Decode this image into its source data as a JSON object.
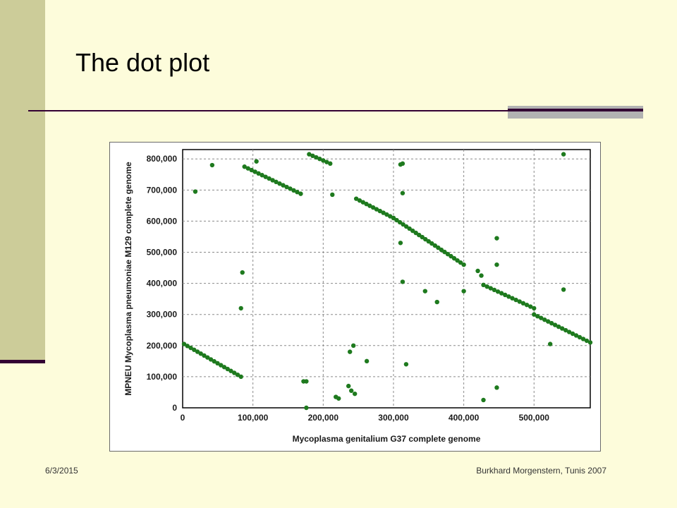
{
  "theme": {
    "background": "#fdfcdb",
    "sidebar": "#cccc99",
    "dark_accent": "#330033",
    "rule_gray": "#b2b2b2",
    "dot_color": "#1e7a1e"
  },
  "slide": {
    "title": "The dot plot",
    "footer_date": "6/3/2015",
    "footer_credit": "Burkhard Morgenstern, Tunis 2007"
  },
  "chart_data": {
    "type": "scatter",
    "title": "",
    "xlabel": "Mycoplasma genitalium G37 complete genome",
    "ylabel": "MPNEU Mycoplasma pneumoniae M129 complete genome",
    "xlim": [
      0,
      580000
    ],
    "ylim": [
      0,
      830000
    ],
    "xticks": [
      0,
      100000,
      200000,
      300000,
      400000,
      500000
    ],
    "xtick_labels": [
      "0",
      "100,000",
      "200,000",
      "300,000",
      "400,000",
      "500,000"
    ],
    "yticks": [
      0,
      100000,
      200000,
      300000,
      400000,
      500000,
      600000,
      700000,
      800000
    ],
    "ytick_labels": [
      "0",
      "100,000",
      "200,000",
      "300,000",
      "400,000",
      "500,000",
      "600,000",
      "700,000",
      "800,000"
    ],
    "grid": true,
    "segments": [
      {
        "from": [
          2000,
          205000
        ],
        "to": [
          83000,
          100000
        ]
      },
      {
        "from": [
          88000,
          775000
        ],
        "to": [
          168000,
          688000
        ]
      },
      {
        "from": [
          180000,
          815000
        ],
        "to": [
          210000,
          785000
        ]
      },
      {
        "from": [
          247000,
          672000
        ],
        "to": [
          300000,
          610000
        ]
      },
      {
        "from": [
          300000,
          610000
        ],
        "to": [
          400000,
          460000
        ]
      },
      {
        "from": [
          428000,
          395000
        ],
        "to": [
          500000,
          320000
        ]
      },
      {
        "from": [
          500000,
          300000
        ],
        "to": [
          580000,
          210000
        ]
      }
    ],
    "points": [
      [
        18000,
        695000
      ],
      [
        42000,
        780000
      ],
      [
        85000,
        435000
      ],
      [
        83000,
        320000
      ],
      [
        105000,
        792000
      ],
      [
        172000,
        85000
      ],
      [
        176000,
        85000
      ],
      [
        176000,
        0
      ],
      [
        213000,
        685000
      ],
      [
        218000,
        35000
      ],
      [
        222000,
        30000
      ],
      [
        236000,
        70000
      ],
      [
        240000,
        55000
      ],
      [
        245000,
        45000
      ],
      [
        238000,
        180000
      ],
      [
        243000,
        200000
      ],
      [
        262000,
        150000
      ],
      [
        310000,
        530000
      ],
      [
        310000,
        782000
      ],
      [
        313000,
        785000
      ],
      [
        313000,
        690000
      ],
      [
        313000,
        405000
      ],
      [
        318000,
        140000
      ],
      [
        345000,
        375000
      ],
      [
        362000,
        340000
      ],
      [
        400000,
        375000
      ],
      [
        420000,
        440000
      ],
      [
        425000,
        425000
      ],
      [
        428000,
        25000
      ],
      [
        447000,
        545000
      ],
      [
        447000,
        460000
      ],
      [
        447000,
        65000
      ],
      [
        523000,
        205000
      ],
      [
        542000,
        815000
      ],
      [
        542000,
        380000
      ]
    ]
  }
}
